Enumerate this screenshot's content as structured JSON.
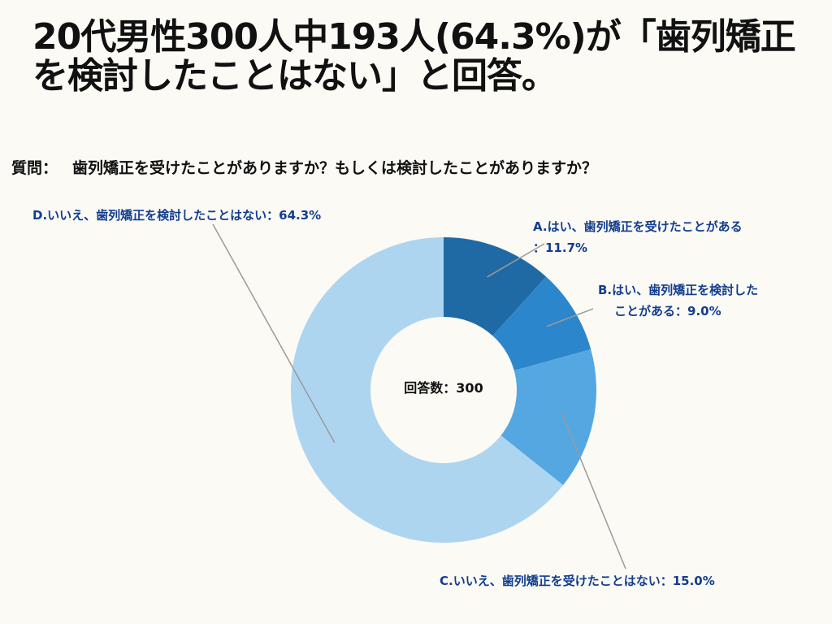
{
  "title": "20代男性300人中193人(64.3%)が「歯列矯正を検討したことはない」と回答。",
  "question": {
    "prefix": "質問：",
    "text": "歯列矯正を受けたことがありますか？もしくは検討したことがありますか？"
  },
  "center_label": "回答数：300",
  "chart_data": {
    "type": "donut",
    "total": 300,
    "slices": [
      {
        "label_line1": "A.はい、歯列矯正を受けたことがある",
        "label_line2": "：11.7%",
        "value": 11.7,
        "color": "#1f6aa5"
      },
      {
        "label_line1": "B.はい、歯列矯正を検討した",
        "label_line2": "ことがある：9.0%",
        "value": 9.0,
        "color": "#2b86cc"
      },
      {
        "label_line1": "C.いいえ、歯列矯正を受けたことはない：15.0%",
        "label_line2": "",
        "value": 15.0,
        "color": "#55a7e2"
      },
      {
        "label_line1": "D.いいえ、歯列矯正を検討したことはない：64.3%",
        "label_line2": "",
        "value": 64.3,
        "color": "#aed5f0"
      }
    ]
  }
}
